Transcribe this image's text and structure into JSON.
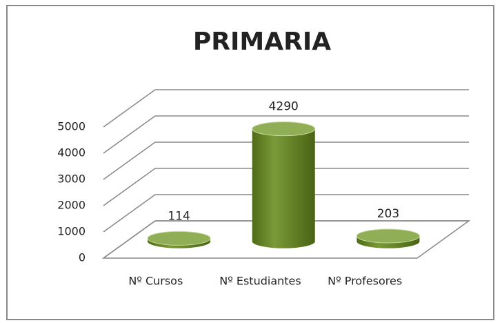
{
  "chart_data": {
    "type": "bar",
    "title": "PRIMARIA",
    "categories": [
      "Nº Cursos",
      "Nº Estudiantes",
      "Nº Profesores"
    ],
    "values": [
      114,
      4290,
      203
    ],
    "color": "#77933c",
    "ylim": [
      0,
      5000
    ],
    "yticks": [
      0,
      1000,
      2000,
      3000,
      4000,
      5000
    ],
    "grid": true
  }
}
